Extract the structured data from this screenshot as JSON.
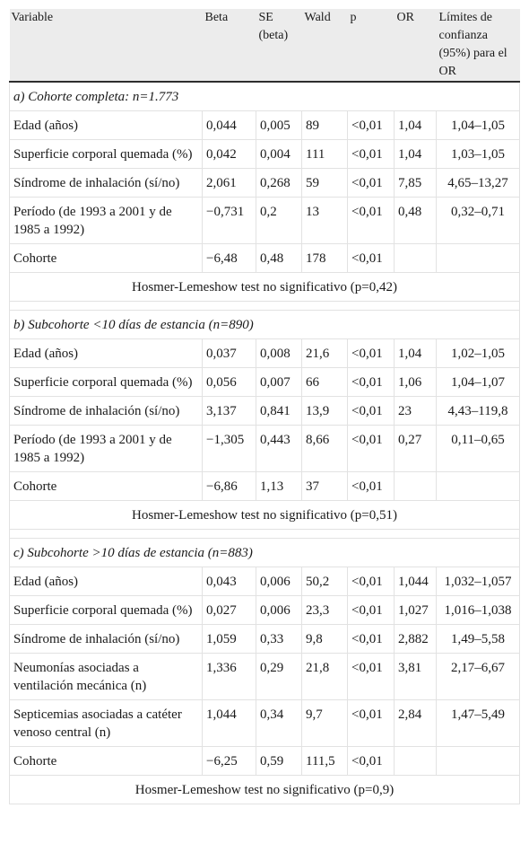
{
  "headers": {
    "variable": "Variable",
    "beta": "Beta",
    "se": "SE (beta)",
    "wald": "Wald",
    "p": "p",
    "or": "OR",
    "ci": "Límites de confianza (95%) para el OR"
  },
  "sections": [
    {
      "title": "a) Cohorte completa: n=1.773",
      "rows": [
        {
          "variable": "Edad (años)",
          "beta": "0,044",
          "se": "0,005",
          "wald": "89",
          "p": "<0,01",
          "or": "1,04",
          "ci": "1,04–1,05"
        },
        {
          "variable": "Superficie corporal quemada (%)",
          "beta": "0,042",
          "se": "0,004",
          "wald": "111",
          "p": "<0,01",
          "or": "1,04",
          "ci": "1,03–1,05"
        },
        {
          "variable": "Síndrome de inhalación (sí/no)",
          "beta": "2,061",
          "se": "0,268",
          "wald": "59",
          "p": "<0,01",
          "or": "7,85",
          "ci": "4,65–13,27"
        },
        {
          "variable": "Período (de 1993 a 2001 y de 1985 a 1992)",
          "beta": "−0,731",
          "se": "0,2",
          "wald": "13",
          "p": "<0,01",
          "or": "0,48",
          "ci": "0,32–0,71"
        },
        {
          "variable": "Cohorte",
          "beta": "−6,48",
          "se": "0,48",
          "wald": "178",
          "p": "<0,01",
          "or": "",
          "ci": ""
        }
      ],
      "note": "Hosmer-Lemeshow test no significativo (p=0,42)"
    },
    {
      "title": "b) Subcohorte <10 días de estancia (n=890)",
      "rows": [
        {
          "variable": "Edad (años)",
          "beta": "0,037",
          "se": "0,008",
          "wald": "21,6",
          "p": "<0,01",
          "or": "1,04",
          "ci": "1,02–1,05"
        },
        {
          "variable": "Superficie corporal quemada (%)",
          "beta": "0,056",
          "se": "0,007",
          "wald": "66",
          "p": "<0,01",
          "or": "1,06",
          "ci": "1,04–1,07"
        },
        {
          "variable": "Síndrome de inhalación (sí/no)",
          "beta": "3,137",
          "se": "0,841",
          "wald": "13,9",
          "p": "<0,01",
          "or": "23",
          "ci": "4,43–119,8"
        },
        {
          "variable": "Período (de 1993 a 2001 y de 1985 a 1992)",
          "beta": "−1,305",
          "se": "0,443",
          "wald": "8,66",
          "p": "<0,01",
          "or": "0,27",
          "ci": "0,11–0,65"
        },
        {
          "variable": "Cohorte",
          "beta": "−6,86",
          "se": "1,13",
          "wald": "37",
          "p": "<0,01",
          "or": "",
          "ci": ""
        }
      ],
      "note": "Hosmer-Lemeshow test no significativo (p=0,51)"
    },
    {
      "title": "c) Subcohorte >10 días de estancia (n=883)",
      "rows": [
        {
          "variable": "Edad (años)",
          "beta": "0,043",
          "se": "0,006",
          "wald": "50,2",
          "p": "<0,01",
          "or": "1,044",
          "ci": "1,032–1,057"
        },
        {
          "variable": "Superficie corporal quemada (%)",
          "beta": "0,027",
          "se": "0,006",
          "wald": "23,3",
          "p": "<0,01",
          "or": "1,027",
          "ci": "1,016–1,038"
        },
        {
          "variable": "Síndrome de inhalación (sí/no)",
          "beta": "1,059",
          "se": "0,33",
          "wald": "9,8",
          "p": "<0,01",
          "or": "2,882",
          "ci": "1,49–5,58"
        },
        {
          "variable": "Neumonías asociadas a ventilación mecánica (n)",
          "beta": "1,336",
          "se": "0,29",
          "wald": "21,8",
          "p": "<0,01",
          "or": "3,81",
          "ci": "2,17–6,67"
        },
        {
          "variable": "Septicemias asociadas a catéter venoso central (n)",
          "beta": "1,044",
          "se": "0,34",
          "wald": "9,7",
          "p": "<0,01",
          "or": "2,84",
          "ci": "1,47–5,49"
        },
        {
          "variable": "Cohorte",
          "beta": "−6,25",
          "se": "0,59",
          "wald": "111,5",
          "p": "<0,01",
          "or": "",
          "ci": ""
        }
      ],
      "note": "Hosmer-Lemeshow test no significativo (p=0,9)"
    }
  ]
}
